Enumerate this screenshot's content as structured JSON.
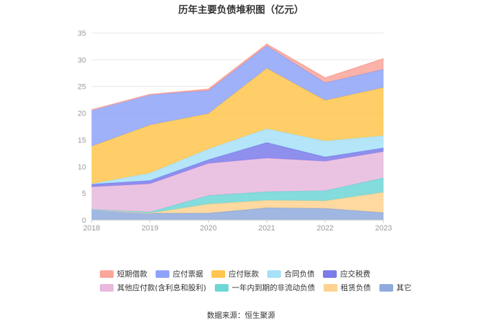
{
  "chart_data": {
    "type": "area",
    "stacked": true,
    "title": "历年主要负债堆积图（亿元）",
    "x": [
      "2018",
      "2019",
      "2020",
      "2021",
      "2022",
      "2023"
    ],
    "ylim": [
      0,
      35
    ],
    "yticks": [
      0,
      5,
      10,
      15,
      20,
      25,
      30,
      35
    ],
    "xlabel": "",
    "ylabel": "",
    "grid": true,
    "legend_position": "bottom",
    "series": [
      {
        "name": "其它",
        "color": "#8faadc",
        "values": [
          2.0,
          1.3,
          1.3,
          2.3,
          2.2,
          1.4
        ]
      },
      {
        "name": "租赁负债",
        "color": "#ffd28f",
        "values": [
          0.0,
          0.0,
          1.7,
          1.4,
          1.4,
          3.8
        ]
      },
      {
        "name": "一年内到期的非流动负债",
        "color": "#6fd6d6",
        "values": [
          0.0,
          0.2,
          1.6,
          1.6,
          1.9,
          2.7
        ]
      },
      {
        "name": "其他应付款(含利息和股利)",
        "color": "#e8b8dd",
        "values": [
          4.2,
          5.3,
          6.0,
          6.3,
          5.5,
          4.9
        ]
      },
      {
        "name": "应交税费",
        "color": "#7b7bea",
        "values": [
          0.5,
          0.6,
          0.7,
          2.9,
          0.8,
          0.7
        ]
      },
      {
        "name": "合同负债",
        "color": "#a7e1f8",
        "values": [
          0.1,
          1.4,
          2.0,
          2.6,
          3.0,
          2.3
        ]
      },
      {
        "name": "应付账款",
        "color": "#ffc64e",
        "values": [
          7.0,
          9.0,
          6.6,
          11.3,
          7.6,
          9.0
        ]
      },
      {
        "name": "应付票据",
        "color": "#8ea3f8",
        "values": [
          6.8,
          5.7,
          4.3,
          4.2,
          3.3,
          3.4
        ]
      },
      {
        "name": "短期借款",
        "color": "#f9a59a",
        "values": [
          0.0,
          0.0,
          0.3,
          0.3,
          0.9,
          2.0
        ]
      }
    ],
    "legend_rows": [
      [
        "短期借款",
        "应付票据",
        "应付账款",
        "合同负债",
        "应交税费"
      ],
      [
        "其他应付款(含利息和股利)",
        "一年内到期的非流动负债",
        "租赁负债",
        "其它"
      ]
    ]
  },
  "source": "数据来源：恒生聚源"
}
